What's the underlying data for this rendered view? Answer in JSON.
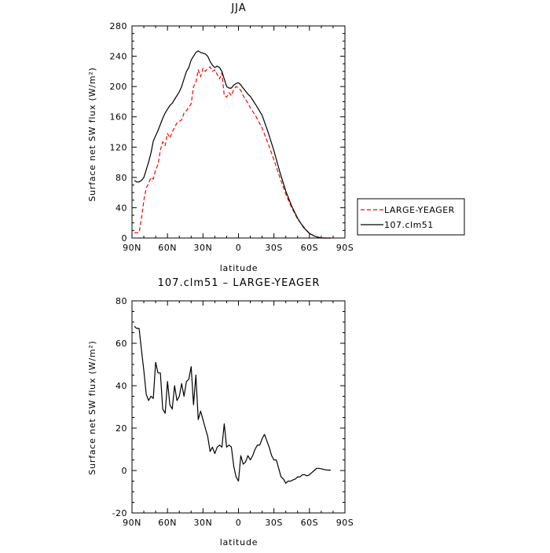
{
  "chart_data": [
    {
      "type": "line",
      "title": "JJA",
      "xlabel": "latitude",
      "ylabel": "Surface net SW flux (W/m²)",
      "xlim": [
        90,
        -90
      ],
      "ylim": [
        0,
        280
      ],
      "xticks": [
        90,
        60,
        30,
        0,
        -30,
        -60,
        -90
      ],
      "xtick_labels": [
        "90N",
        "60N",
        "30N",
        "0",
        "30S",
        "60S",
        "90S"
      ],
      "yticks": [
        0,
        40,
        80,
        120,
        160,
        200,
        240,
        280
      ],
      "ytick_labels": [
        "0",
        "40",
        "80",
        "120",
        "160",
        "200",
        "240",
        "280"
      ],
      "legend": {
        "placement": "outside-right",
        "entries": [
          "LARGE-YEAGER",
          "107.clm51"
        ]
      },
      "series": [
        {
          "name": "LARGE-YEAGER",
          "color": "#ff0000",
          "style": "dashed",
          "x": [
            88,
            86,
            84,
            82,
            80,
            78,
            76,
            74,
            72,
            70,
            68,
            66,
            64,
            62,
            60,
            58,
            56,
            54,
            52,
            50,
            48,
            46,
            44,
            42,
            40,
            38,
            36,
            34,
            32,
            30,
            28,
            26,
            24,
            22,
            20,
            18,
            16,
            14,
            12,
            10,
            8,
            6,
            4,
            2,
            0,
            -2,
            -4,
            -6,
            -8,
            -10,
            -15,
            -20,
            -25,
            -30,
            -35,
            -40,
            -45,
            -50,
            -55,
            -60,
            -65,
            -70,
            -72,
            -74,
            -76,
            -78
          ],
          "values": [
            7,
            7,
            7,
            25,
            50,
            66,
            72,
            80,
            78,
            90,
            97,
            116,
            127,
            122,
            138,
            132,
            140,
            146,
            152,
            154,
            156,
            165,
            168,
            173,
            177,
            200,
            205,
            222,
            213,
            224,
            220,
            224,
            226,
            220,
            222,
            216,
            210,
            218,
            188,
            186,
            192,
            188,
            196,
            200,
            198,
            195,
            188,
            183,
            178,
            172,
            160,
            145,
            125,
            103,
            80,
            58,
            40,
            25,
            15,
            6,
            2,
            0,
            0,
            0,
            0,
            0
          ],
          "labels": []
        },
        {
          "name": "107.clm51",
          "color": "#000000",
          "style": "solid",
          "x": [
            88,
            86,
            84,
            82,
            80,
            78,
            76,
            74,
            72,
            70,
            68,
            66,
            64,
            62,
            60,
            58,
            56,
            54,
            52,
            50,
            48,
            46,
            44,
            42,
            40,
            38,
            36,
            34,
            32,
            30,
            28,
            26,
            24,
            22,
            20,
            18,
            16,
            14,
            12,
            10,
            8,
            6,
            4,
            2,
            0,
            -2,
            -4,
            -6,
            -8,
            -10,
            -15,
            -20,
            -25,
            -30,
            -35,
            -40,
            -45,
            -50,
            -55,
            -60,
            -65,
            -70,
            -72,
            -74,
            -76,
            -78
          ],
          "values": [
            76,
            74,
            74,
            76,
            80,
            90,
            100,
            112,
            128,
            135,
            142,
            150,
            158,
            165,
            170,
            175,
            178,
            183,
            188,
            193,
            200,
            210,
            220,
            225,
            235,
            240,
            245,
            247,
            245,
            244,
            243,
            240,
            233,
            228,
            225,
            227,
            225,
            220,
            210,
            200,
            198,
            198,
            202,
            204,
            205,
            202,
            198,
            194,
            190,
            187,
            175,
            162,
            140,
            115,
            87,
            62,
            42,
            26,
            14,
            6,
            2,
            0,
            0,
            0,
            0,
            0
          ],
          "labels": []
        }
      ]
    },
    {
      "type": "line",
      "title": "107.clm51 – LARGE-YEAGER",
      "xlabel": "latitude",
      "ylabel": "Surface net SW flux (W/m²)",
      "xlim": [
        90,
        -90
      ],
      "ylim": [
        -20,
        80
      ],
      "xticks": [
        90,
        60,
        30,
        0,
        -30,
        -60,
        -90
      ],
      "xtick_labels": [
        "90N",
        "60N",
        "30N",
        "0",
        "30S",
        "60S",
        "90S"
      ],
      "yticks": [
        -20,
        0,
        20,
        40,
        60,
        80
      ],
      "ytick_labels": [
        "-20",
        "0",
        "20",
        "40",
        "60",
        "80"
      ],
      "series": [
        {
          "color": "#000000",
          "style": "solid",
          "x": [
            88,
            86,
            84,
            82,
            80,
            78,
            76,
            74,
            72,
            70,
            68,
            66,
            64,
            62,
            60,
            58,
            56,
            54,
            52,
            50,
            48,
            46,
            44,
            42,
            40,
            38,
            36,
            34,
            32,
            30,
            28,
            26,
            24,
            22,
            20,
            18,
            16,
            14,
            12,
            10,
            8,
            6,
            4,
            2,
            0,
            -2,
            -4,
            -6,
            -8,
            -10,
            -12,
            -14,
            -16,
            -18,
            -20,
            -22,
            -24,
            -26,
            -28,
            -30,
            -32,
            -34,
            -36,
            -38,
            -40,
            -42,
            -44,
            -46,
            -48,
            -50,
            -52,
            -54,
            -56,
            -58,
            -60,
            -62,
            -64,
            -66,
            -68,
            -70,
            -72,
            -74,
            -76,
            -78
          ],
          "values": [
            68,
            67,
            67,
            57,
            47,
            36,
            33,
            35,
            34,
            51,
            46,
            46,
            29,
            27,
            42,
            31,
            29,
            40,
            33,
            35,
            41,
            35,
            42,
            43,
            49,
            31,
            45,
            24,
            28,
            24,
            20,
            16,
            9,
            11,
            8,
            11,
            12,
            11,
            22,
            11,
            12,
            11,
            2,
            -3,
            -5,
            7,
            3,
            4,
            7,
            5,
            7,
            10,
            12,
            12,
            15,
            17,
            14,
            11,
            7,
            5,
            5,
            1,
            -3,
            -4,
            -6,
            -5,
            -5,
            -4.5,
            -4,
            -3,
            -3,
            -2,
            -2,
            -2.5,
            -2,
            -1,
            0,
            1,
            1,
            0.8,
            0.5,
            0.3,
            0.2,
            0.2
          ],
          "labels": []
        }
      ]
    }
  ]
}
